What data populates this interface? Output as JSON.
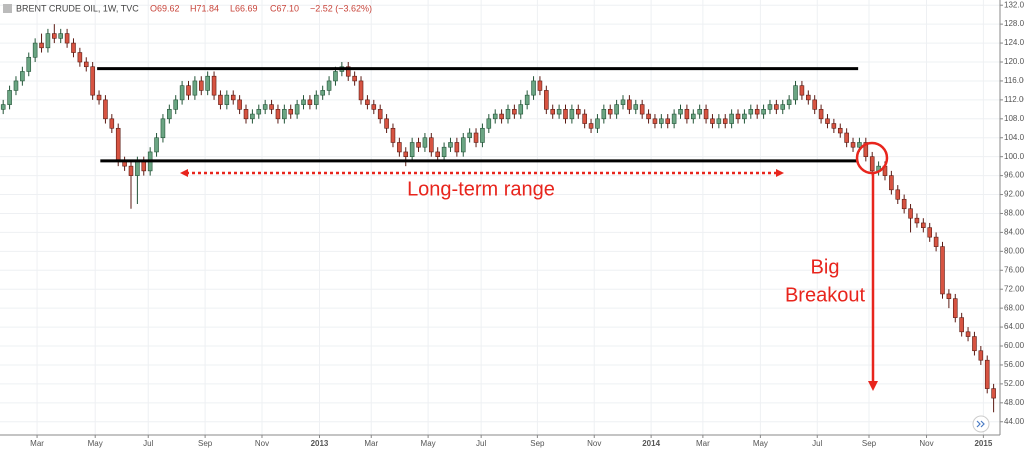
{
  "chart_data": {
    "type": "candlestick",
    "header": {
      "symbol": "BRENT CRUDE OIL, 1W, TVC",
      "open": "O69.62",
      "high": "H71.84",
      "low": "L66.69",
      "close": "C67.10",
      "change": "−2.52 (−3.62%)"
    },
    "annotations": {
      "range": "Long-term range",
      "breakout": [
        "Big",
        "Breakout"
      ]
    },
    "levels": [
      {
        "value": 118.6,
        "from": 14.7,
        "to": 133.8
      },
      {
        "value": 99.1,
        "from": 15.2,
        "to": 133.8
      }
    ],
    "up_color": "#6ba583",
    "down_color": "#d75442",
    "grid": true,
    "open": [
      110,
      111,
      114,
      116,
      118,
      121,
      124,
      123,
      126,
      125,
      126,
      124,
      122,
      120,
      119,
      113,
      112,
      108,
      106,
      99,
      98,
      96,
      99,
      97,
      101,
      104,
      108,
      110,
      112,
      115,
      113,
      116,
      114,
      117,
      113,
      111,
      113,
      112,
      110,
      108,
      109,
      110,
      111,
      110,
      108,
      110,
      109,
      111,
      112,
      111,
      113,
      114,
      116,
      118,
      119,
      117,
      116,
      112,
      111,
      110,
      108,
      106,
      103,
      101,
      100,
      103,
      102,
      104,
      101,
      100,
      102,
      103,
      101,
      104,
      105,
      103,
      106,
      108,
      109,
      108,
      110,
      109,
      111,
      113,
      116,
      114,
      110,
      109,
      110,
      108,
      110,
      109,
      107,
      106,
      108,
      110,
      109,
      111,
      112,
      110,
      111,
      109,
      108,
      107,
      108,
      107,
      109,
      110,
      108,
      109,
      110,
      108,
      107,
      108,
      107,
      109,
      108,
      109,
      110,
      109,
      110,
      111,
      110,
      111,
      112,
      115,
      113,
      112,
      110,
      108,
      107,
      106,
      105,
      103,
      102,
      103,
      100,
      97,
      98,
      96,
      93,
      91,
      89,
      87,
      86,
      85,
      83,
      81,
      71,
      70,
      66,
      63,
      62,
      59,
      57,
      51
    ],
    "high": [
      112,
      115,
      117,
      119,
      122,
      125,
      126,
      127,
      128,
      127,
      127,
      125,
      123,
      121,
      120,
      114,
      113,
      109,
      107,
      100,
      99,
      100,
      100,
      102,
      105,
      109,
      111,
      113,
      116,
      116,
      117,
      117,
      118,
      118,
      114,
      114,
      114,
      113,
      111,
      110,
      111,
      112,
      112,
      111,
      111,
      111,
      112,
      113,
      113,
      114,
      115,
      117,
      119,
      120,
      120,
      118,
      117,
      113,
      112,
      111,
      109,
      107,
      104,
      102,
      104,
      104,
      105,
      105,
      102,
      103,
      104,
      104,
      105,
      106,
      106,
      107,
      109,
      110,
      110,
      111,
      111,
      112,
      114,
      117,
      117,
      115,
      111,
      111,
      111,
      111,
      111,
      110,
      108,
      109,
      111,
      111,
      112,
      113,
      113,
      112,
      112,
      110,
      109,
      109,
      109,
      110,
      111,
      111,
      110,
      111,
      111,
      109,
      109,
      109,
      110,
      110,
      110,
      111,
      111,
      111,
      112,
      112,
      112,
      113,
      116,
      116,
      114,
      113,
      111,
      109,
      108,
      107,
      106,
      104,
      104,
      104,
      101,
      99,
      99,
      97,
      94,
      92,
      90,
      88,
      87,
      86,
      84,
      82,
      72,
      71,
      67,
      64,
      63,
      60,
      58,
      52
    ],
    "low": [
      109,
      110,
      113,
      115,
      117,
      120,
      122,
      122,
      124,
      124,
      123,
      121,
      119,
      118,
      112,
      111,
      107,
      105,
      98,
      97,
      89,
      90,
      96,
      96,
      100,
      103,
      107,
      109,
      111,
      112,
      112,
      113,
      113,
      112,
      110,
      110,
      111,
      109,
      107,
      107,
      108,
      109,
      109,
      107,
      107,
      108,
      108,
      110,
      110,
      110,
      112,
      113,
      115,
      117,
      116,
      115,
      111,
      110,
      109,
      107,
      105,
      102,
      100,
      98,
      99,
      101,
      101,
      100,
      99,
      99,
      101,
      100,
      100,
      103,
      102,
      102,
      105,
      107,
      107,
      107,
      108,
      108,
      110,
      112,
      113,
      109,
      108,
      108,
      107,
      107,
      108,
      106,
      105,
      105,
      107,
      108,
      108,
      110,
      109,
      109,
      108,
      107,
      106,
      106,
      106,
      106,
      108,
      107,
      107,
      108,
      107,
      106,
      106,
      106,
      106,
      107,
      107,
      108,
      108,
      108,
      109,
      109,
      109,
      110,
      111,
      112,
      111,
      109,
      107,
      106,
      105,
      104,
      102,
      101,
      101,
      99,
      96,
      96,
      95,
      92,
      90,
      88,
      84,
      85,
      84,
      82,
      80,
      70,
      68,
      65,
      62,
      61,
      58,
      56,
      50,
      46
    ],
    "close": [
      111,
      114,
      116,
      118,
      121,
      124,
      123,
      126,
      125,
      126,
      124,
      122,
      120,
      119,
      113,
      112,
      108,
      106,
      99,
      98,
      96,
      99,
      97,
      101,
      104,
      108,
      110,
      112,
      115,
      113,
      116,
      114,
      117,
      113,
      111,
      113,
      112,
      110,
      108,
      109,
      110,
      111,
      110,
      108,
      110,
      109,
      111,
      112,
      111,
      113,
      114,
      116,
      118,
      119,
      117,
      116,
      112,
      111,
      110,
      108,
      106,
      103,
      101,
      100,
      103,
      102,
      104,
      101,
      100,
      102,
      103,
      101,
      104,
      105,
      103,
      106,
      108,
      109,
      108,
      110,
      109,
      111,
      113,
      116,
      114,
      110,
      109,
      110,
      108,
      110,
      109,
      107,
      106,
      108,
      110,
      109,
      111,
      112,
      110,
      111,
      109,
      108,
      107,
      108,
      107,
      109,
      110,
      108,
      109,
      110,
      108,
      107,
      108,
      107,
      109,
      108,
      109,
      110,
      109,
      110,
      111,
      110,
      111,
      112,
      115,
      113,
      112,
      110,
      108,
      107,
      106,
      105,
      103,
      102,
      103,
      100,
      97,
      98,
      96,
      93,
      91,
      89,
      87,
      86,
      85,
      83,
      81,
      71,
      70,
      66,
      63,
      62,
      59,
      57,
      51,
      49
    ],
    "xlim": [
      -0.5,
      156
    ],
    "xticks": [
      {
        "value": 5.3,
        "label": "Mar"
      },
      {
        "value": 14.4,
        "label": "May"
      },
      {
        "value": 22.7,
        "label": "Jul"
      },
      {
        "value": 31.6,
        "label": "Sep"
      },
      {
        "value": 40.5,
        "label": "Nov"
      },
      {
        "value": 49.5,
        "label": "2013"
      },
      {
        "value": 57.6,
        "label": "Mar"
      },
      {
        "value": 66.5,
        "label": "May"
      },
      {
        "value": 74.8,
        "label": "Jul"
      },
      {
        "value": 83.6,
        "label": "Sep"
      },
      {
        "value": 92.5,
        "label": "Nov"
      },
      {
        "value": 101.4,
        "label": "2014"
      },
      {
        "value": 109.5,
        "label": "Mar"
      },
      {
        "value": 118.5,
        "label": "May"
      },
      {
        "value": 127.4,
        "label": "Jul"
      },
      {
        "value": 135.5,
        "label": "Sep"
      },
      {
        "value": 144.5,
        "label": "Nov"
      },
      {
        "value": 153.4,
        "label": "2015"
      }
    ],
    "ylim": [
      41.2,
      133.1
    ],
    "yticks": [
      {
        "value": 44,
        "label": "44.00"
      },
      {
        "value": 48,
        "label": "48.00"
      },
      {
        "value": 52,
        "label": "52.00"
      },
      {
        "value": 56,
        "label": "56.00"
      },
      {
        "value": 60,
        "label": "60.00"
      },
      {
        "value": 64,
        "label": "64.00"
      },
      {
        "value": 68,
        "label": "68.00"
      },
      {
        "value": 72,
        "label": "72.00"
      },
      {
        "value": 76,
        "label": "76.00"
      },
      {
        "value": 80,
        "label": "80.00"
      },
      {
        "value": 84,
        "label": "84.00"
      },
      {
        "value": 88,
        "label": "88.00"
      },
      {
        "value": 92,
        "label": "92.00"
      },
      {
        "value": 96,
        "label": "96.00"
      },
      {
        "value": 100,
        "label": "100.00"
      },
      {
        "value": 104,
        "label": "104.00"
      },
      {
        "value": 108,
        "label": "108.00"
      },
      {
        "value": 112,
        "label": "112.00"
      },
      {
        "value": 116,
        "label": "116.00"
      },
      {
        "value": 120,
        "label": "120.00"
      },
      {
        "value": 124,
        "label": "124.00"
      },
      {
        "value": 128,
        "label": "128.00"
      },
      {
        "value": 132,
        "label": "132.00"
      }
    ]
  }
}
